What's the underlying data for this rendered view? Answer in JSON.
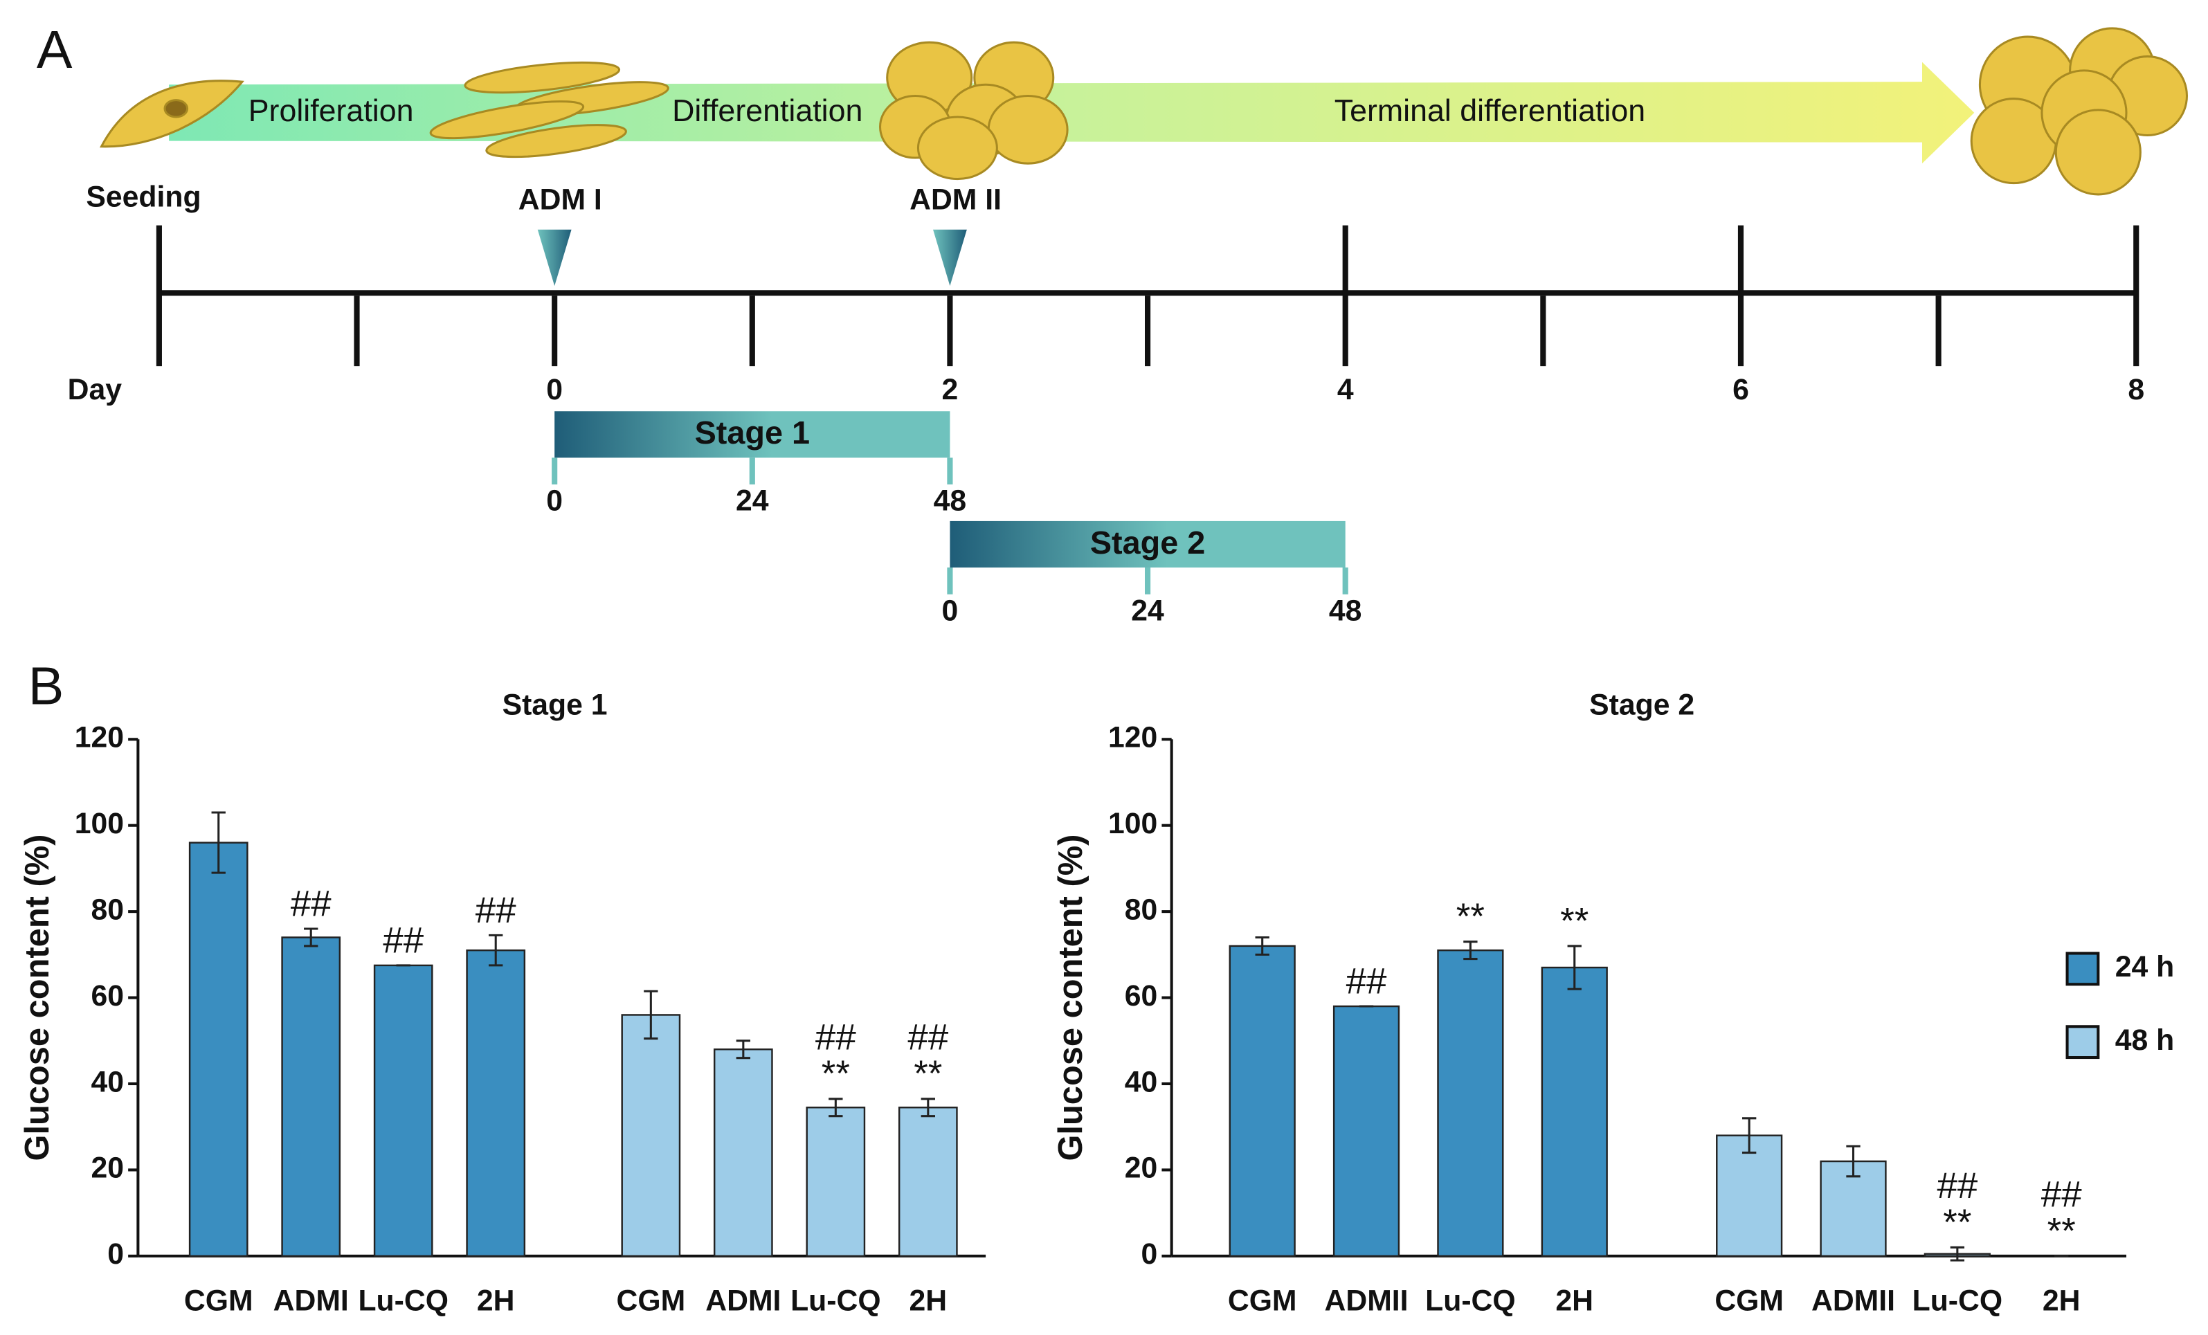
{
  "panel_a": {
    "label": "A",
    "phases": [
      "Proliferation",
      "Differentiation",
      "Terminal differentiation"
    ],
    "seeding": "Seeding",
    "day_label": "Day",
    "xlim": [
      -2,
      8
    ],
    "ticks": [
      -2,
      -1,
      0,
      1,
      2,
      3,
      4,
      5,
      6,
      7,
      8
    ],
    "tick_labels": [
      0,
      2,
      4,
      6,
      8
    ],
    "markers": [
      {
        "label": "ADM I",
        "day": 0
      },
      {
        "label": "ADM II",
        "day": 2
      }
    ],
    "stages": [
      {
        "label": "Stage 1",
        "start_day": 0,
        "end_day": 2,
        "hours": [
          0,
          24,
          48
        ]
      },
      {
        "label": "Stage 2",
        "start_day": 2,
        "end_day": 4,
        "hours": [
          0,
          24,
          48
        ]
      }
    ]
  },
  "panel_b_label": "B",
  "chart_data": [
    {
      "type": "bar",
      "title": "Stage 1",
      "y_label": "Glucose content (%)",
      "categories": [
        "CGM",
        "ADMI",
        "Lu-CQ",
        "2H"
      ],
      "series": [
        {
          "color": "#3a8ec0",
          "values": [
            96,
            74,
            67.5,
            71
          ],
          "errors": [
            7,
            2,
            0,
            3.5
          ],
          "annotations": [
            null,
            [
              "##"
            ],
            [
              "##"
            ],
            [
              "##"
            ]
          ]
        },
        {
          "color": "#9dcce8",
          "values": [
            56,
            48,
            34.5,
            34.5
          ],
          "errors": [
            5.5,
            2,
            2,
            2
          ],
          "annotations": [
            null,
            null,
            [
              "##",
              "**"
            ],
            [
              "##",
              "**"
            ]
          ]
        }
      ],
      "ylim": [
        0,
        120
      ],
      "yticks": [
        0,
        20,
        40,
        60,
        80,
        100,
        120
      ],
      "legend": false
    },
    {
      "type": "bar",
      "title": "Stage 2",
      "y_label": "Glucose content (%)",
      "categories": [
        "CGM",
        "ADMII",
        "Lu-CQ",
        "2H"
      ],
      "series": [
        {
          "name": "24 h",
          "color": "#3a8ec0",
          "values": [
            72,
            58,
            71,
            67
          ],
          "errors": [
            2,
            0,
            2,
            5
          ],
          "annotations": [
            null,
            [
              "##"
            ],
            [
              "**"
            ],
            [
              "**"
            ]
          ]
        },
        {
          "name": "48 h",
          "color": "#9dcce8",
          "values": [
            28,
            22,
            0.5,
            0
          ],
          "errors": [
            4,
            3.5,
            1.5,
            0
          ],
          "annotations": [
            null,
            null,
            [
              "##",
              "**"
            ],
            [
              "##",
              "**"
            ]
          ]
        }
      ],
      "ylim": [
        0,
        120
      ],
      "yticks": [
        0,
        20,
        40,
        60,
        80,
        100,
        120
      ],
      "legend": true
    }
  ]
}
